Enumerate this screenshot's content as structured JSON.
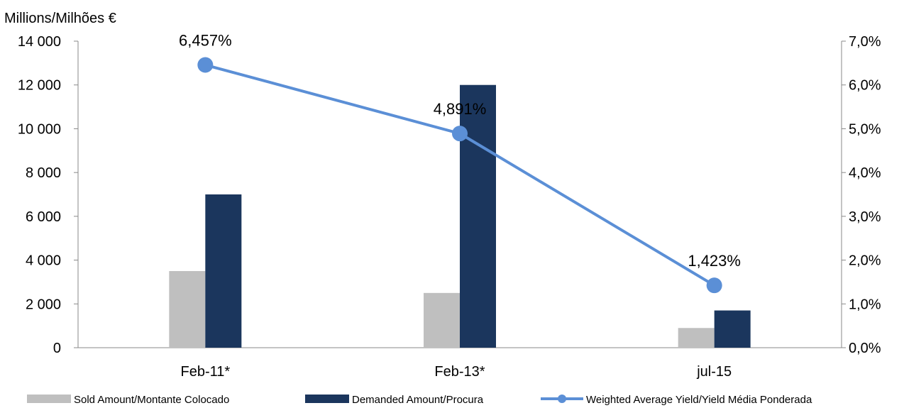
{
  "chart_data": {
    "type": "bar",
    "ylabel": "Millions/Milhões €",
    "categories": [
      "Feb-11*",
      "Feb-13*",
      "jul-15"
    ],
    "ylim": [
      0,
      14000
    ],
    "y_ticks": [
      "0",
      "2 000",
      "4 000",
      "6 000",
      "8 000",
      "10 000",
      "12 000",
      "14 000"
    ],
    "y2lim": [
      0,
      7.0
    ],
    "y2_ticks": [
      "0,0%",
      "1,0%",
      "2,0%",
      "3,0%",
      "4,0%",
      "5,0%",
      "6,0%",
      "7,0%"
    ],
    "series": [
      {
        "name": "Sold Amount/Montante Colocado",
        "type": "bar",
        "axis": "left",
        "color": "#bfbfbf",
        "values": [
          3500,
          2500,
          900
        ]
      },
      {
        "name": "Demanded Amount/Procura",
        "type": "bar",
        "axis": "left",
        "color": "#1b365d",
        "values": [
          7000,
          12000,
          1700
        ]
      },
      {
        "name": "Weighted Average Yield/Yield Média Ponderada",
        "type": "line",
        "axis": "right",
        "color": "#5b8fd6",
        "values": [
          6.457,
          4.891,
          1.423
        ],
        "labels": [
          "6,457%",
          "4,891%",
          "1,423%"
        ]
      }
    ],
    "grid": false,
    "legend_position": "bottom"
  }
}
